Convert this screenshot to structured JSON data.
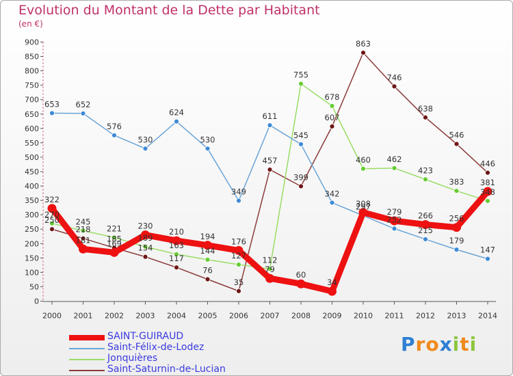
{
  "title": "Evolution du Montant de la Dette par Habitant",
  "unit_label": "(en €)",
  "logo_text": "Proxiti",
  "chart_data": {
    "type": "line",
    "title": "Evolution du Montant de la Dette par Habitant",
    "ylabel": "(en €)",
    "xlabel": "",
    "ylim": [
      0,
      900
    ],
    "yticks": [
      0,
      50,
      100,
      150,
      200,
      250,
      300,
      350,
      400,
      450,
      500,
      550,
      600,
      650,
      700,
      750,
      800,
      850,
      900
    ],
    "grid": false,
    "legend_position": "bottom-left",
    "x": [
      "2000",
      "2001",
      "2002",
      "2003",
      "2004",
      "2005",
      "2006",
      "2007",
      "2008",
      "2009",
      "2010",
      "2011",
      "2012",
      "2013",
      "2014"
    ],
    "series": [
      {
        "name": "SAINT-GUIRAUD",
        "color": "#ee1111",
        "marker_color": "#ee1111",
        "values": [
          322,
          181,
          169,
          230,
          210,
          194,
          176,
          79,
          60,
          34,
          308,
          279,
          266,
          256,
          381
        ]
      },
      {
        "name": "Saint-Félix-de-Lodez",
        "color": "#6aa5d8",
        "marker_color": "#3e8ad6",
        "values": [
          653,
          652,
          576,
          530,
          624,
          530,
          349,
          611,
          545,
          342,
          297,
          252,
          215,
          179,
          147
        ]
      },
      {
        "name": "Jonquières",
        "color": "#99dd66",
        "marker_color": "#66cc33",
        "values": [
          270,
          245,
          221,
          189,
          163,
          144,
          127,
          112,
          755,
          678,
          460,
          462,
          423,
          383,
          348
        ]
      },
      {
        "name": "Saint-Saturnin-de-Lucian",
        "color": "#8b3a3a",
        "marker_color": "#6e1616",
        "values": [
          250,
          218,
          185,
          154,
          117,
          76,
          35,
          457,
          399,
          607,
          863,
          746,
          638,
          546,
          446
        ]
      }
    ]
  }
}
